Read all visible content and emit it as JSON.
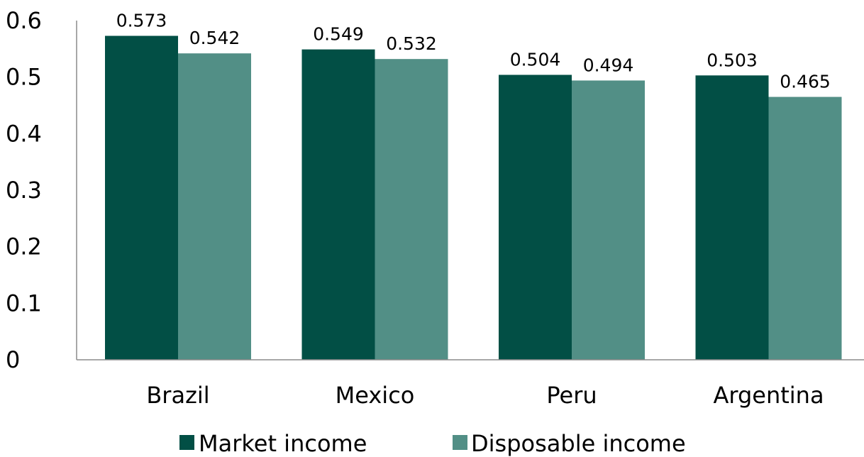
{
  "chart_data": {
    "type": "bar",
    "categories": [
      "Brazil",
      "Mexico",
      "Peru",
      "Argentina"
    ],
    "series": [
      {
        "name": "Market income",
        "values": [
          0.573,
          0.549,
          0.504,
          0.503
        ],
        "color": "#024f45"
      },
      {
        "name": "Disposable income",
        "values": [
          0.542,
          0.532,
          0.494,
          0.465
        ],
        "color": "#528f86"
      }
    ],
    "data_labels": [
      [
        "0.573",
        "0.549",
        "0.504",
        "0.503"
      ],
      [
        "0.542",
        "0.532",
        "0.494",
        "0.465"
      ]
    ],
    "y_ticks": [
      0,
      0.1,
      0.2,
      0.3,
      0.4,
      0.5,
      0.6
    ],
    "y_tick_labels": [
      "0",
      "0.1",
      "0.2",
      "0.3",
      "0.4",
      "0.5",
      "0.6"
    ],
    "ylim": [
      0,
      0.6
    ],
    "grid": false,
    "legend_position": "bottom",
    "title": "",
    "xlabel": "",
    "ylabel": ""
  }
}
